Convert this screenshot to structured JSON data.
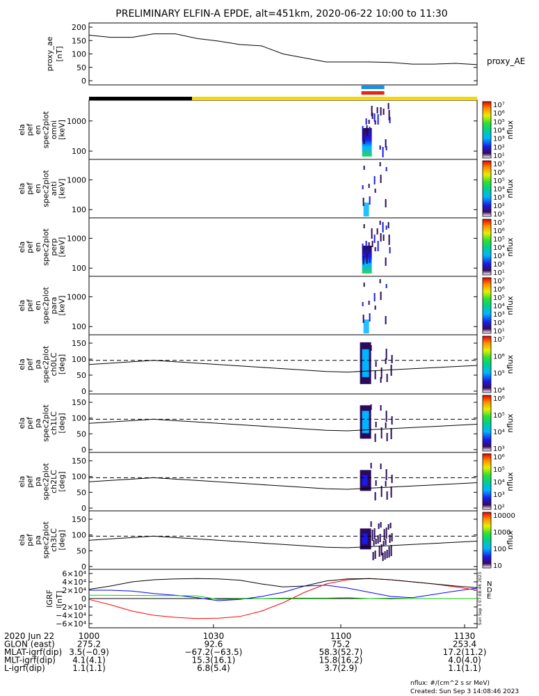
{
  "title": "PRELIMINARY ELFIN-A EPDE, alt=451km, 2020-06-22 10:00 to 11:30",
  "colors": {
    "axis": "#000000",
    "spin_bar_blue": "#1a8fe8",
    "spin_bar_red": "#e8241a",
    "orbit_night": "#000000",
    "orbit_day": "#f5d800",
    "grf_n": "#0000ff",
    "grf_e": "#00cc00",
    "grf_d": "#ff0000",
    "grf_total": "#000000"
  },
  "panels": [
    {
      "id": "proxy_ae",
      "ylabel": [
        "proxy_ae",
        "[nT]"
      ],
      "yticks": [
        "200",
        "150",
        "100",
        "50",
        "0"
      ],
      "right_label": "proxy_AE"
    },
    {
      "id": "omni",
      "ylabel": [
        "ela",
        "pef",
        "en",
        "spec2plot",
        "omni",
        "[keV]"
      ],
      "yticks": [
        "1000",
        "100"
      ],
      "cbar_ticks": [
        "10⁷",
        "10⁶",
        "10⁵",
        "10⁴",
        "10³",
        "10²",
        "10¹"
      ],
      "cbar_label": "nflux"
    },
    {
      "id": "anti",
      "ylabel": [
        "ela",
        "pef",
        "en",
        "spec2plot",
        "anti",
        "[keV]"
      ],
      "yticks": [
        "1000",
        "100"
      ],
      "cbar_ticks": [
        "10⁷",
        "10⁶",
        "10⁵",
        "10⁴",
        "10³",
        "10²",
        "10¹"
      ],
      "cbar_label": "nflux"
    },
    {
      "id": "perp",
      "ylabel": [
        "ela",
        "pef",
        "en",
        "spec2plot",
        "perp",
        "[keV]"
      ],
      "yticks": [
        "1000",
        "100"
      ],
      "cbar_ticks": [
        "10⁷",
        "10⁶",
        "10⁵",
        "10⁴",
        "10³",
        "10²",
        "10¹"
      ],
      "cbar_label": "nflux"
    },
    {
      "id": "para",
      "ylabel": [
        "ela",
        "pef",
        "en",
        "spec2plot",
        "para",
        "[keV]"
      ],
      "yticks": [
        "1000",
        "100"
      ],
      "cbar_ticks": [
        "10⁷",
        "10⁶",
        "10⁵",
        "10⁴",
        "10³",
        "10²",
        "10¹"
      ],
      "cbar_label": "nflux"
    },
    {
      "id": "ch0LC",
      "ylabel": [
        "ela",
        "pef",
        "pa",
        "spec2plot",
        "ch0LC",
        "[deg]"
      ],
      "yticks": [
        "150",
        "100",
        "50",
        "0"
      ],
      "cbar_ticks": [
        "10⁷",
        "10⁶",
        "10⁵",
        "10⁴"
      ],
      "cbar_label": "nflux"
    },
    {
      "id": "ch1LC",
      "ylabel": [
        "ela",
        "pef",
        "pa",
        "spec2plot",
        "ch1LC",
        "[deg]"
      ],
      "yticks": [
        "150",
        "100",
        "50",
        "0"
      ],
      "cbar_ticks": [
        "10⁶",
        "10⁵",
        "10⁴",
        "10³"
      ],
      "cbar_label": "nflux"
    },
    {
      "id": "ch2LC",
      "ylabel": [
        "ela",
        "pef",
        "pa",
        "spec2plot",
        "ch2LC",
        "[deg]"
      ],
      "yticks": [
        "150",
        "100",
        "50",
        "0"
      ],
      "cbar_ticks": [
        "10⁶",
        "10⁵",
        "10⁴",
        "10³",
        "10²"
      ],
      "cbar_label": "nflux"
    },
    {
      "id": "ch3LC",
      "ylabel": [
        "ela",
        "pef",
        "pa",
        "spec2plot",
        "ch3LC",
        "[deg]"
      ],
      "yticks": [
        "150",
        "100",
        "50",
        "0"
      ],
      "cbar_ticks": [
        "10000",
        "1000",
        "100",
        "10"
      ],
      "cbar_label": "nflux"
    },
    {
      "id": "igrf",
      "ylabel": [
        "IGRF",
        "[nT]"
      ],
      "yticks": [
        "6×10⁴",
        "4×10⁴",
        "2×10⁴",
        "0",
        "−2×10⁴",
        "−4×10⁴",
        "−6×10⁴"
      ],
      "legend": [
        "N",
        "D",
        "E"
      ],
      "side_note": "Sun Sep  3 07:08:46 2023"
    }
  ],
  "footer": {
    "rows": [
      {
        "label": "2020 Jun 22",
        "values": [
          "1000",
          "1030",
          "1100",
          "1130"
        ]
      },
      {
        "label": "GLON (east)",
        "values": [
          "275.2",
          "92.6",
          "75.2",
          "253.4"
        ]
      },
      {
        "label": "MLAT-igrf(dip)",
        "values": [
          "3.5(−0.9)",
          "−67.2(−63.5)",
          "58.3(52.7)",
          "17.2(11.2)"
        ]
      },
      {
        "label": "MLT-igrf(dip)",
        "values": [
          "4.1(4.1)",
          "15.3(16.1)",
          "15.8(16.2)",
          "4.0(4.0)"
        ]
      },
      {
        "label": "L-igrf(dip)",
        "values": [
          "1.1(1.1)",
          "6.8(5.4)",
          "3.7(2.9)",
          "1.1(1.1)"
        ]
      }
    ],
    "units_note": "nflux: #/(cm^2 s sr MeV)",
    "created": "Created: Sun Sep  3 14:08:46 2023"
  },
  "chart_data": {
    "type": "line",
    "x_range": [
      "10:00",
      "11:30"
    ],
    "proxy_ae": {
      "x": [
        "10:00",
        "10:05",
        "10:10",
        "10:15",
        "10:20",
        "10:25",
        "10:30",
        "10:35",
        "10:40",
        "10:45",
        "10:50",
        "10:55",
        "11:00",
        "11:05",
        "11:10",
        "11:15",
        "11:20",
        "11:25",
        "11:30"
      ],
      "values": [
        170,
        162,
        162,
        175,
        175,
        158,
        148,
        135,
        130,
        100,
        85,
        70,
        70,
        70,
        68,
        62,
        62,
        65,
        60
      ],
      "ylim": [
        0,
        200
      ]
    },
    "pitch_angle_reference": {
      "loss_cone_dashed": 110,
      "solid": [
        95,
        100,
        105,
        110,
        105,
        100,
        95,
        90,
        85,
        80,
        75,
        70,
        68,
        72,
        76,
        80,
        84,
        88,
        92
      ]
    },
    "igrf": {
      "ylim": [
        -60000,
        60000
      ],
      "series": [
        {
          "name": "N",
          "values": [
            20000,
            20000,
            18000,
            12000,
            8000,
            2000,
            -5000,
            -2000,
            5000,
            15000,
            30000,
            32000,
            25000,
            15000,
            5000,
            2000,
            10000,
            18000,
            25000
          ]
        },
        {
          "name": "D",
          "values": [
            -2000,
            -15000,
            -30000,
            -40000,
            -45000,
            -48000,
            -47000,
            -43000,
            -30000,
            -10000,
            15000,
            35000,
            45000,
            48000,
            45000,
            40000,
            35000,
            28000,
            20000
          ]
        },
        {
          "name": "E",
          "values": [
            8000,
            8000,
            7500,
            7000,
            7000,
            6500,
            -2000,
            -1000,
            0,
            1000,
            1000,
            1000,
            2000,
            0,
            -1000,
            0,
            0,
            0,
            0
          ]
        },
        {
          "name": "total",
          "values": [
            22000,
            30000,
            40000,
            45000,
            47000,
            48000,
            47000,
            44000,
            35000,
            28000,
            30000,
            42000,
            47000,
            48000,
            45000,
            40000,
            35000,
            30000,
            26000
          ]
        }
      ]
    },
    "spectrogram_window": [
      "11:03",
      "11:08"
    ]
  }
}
